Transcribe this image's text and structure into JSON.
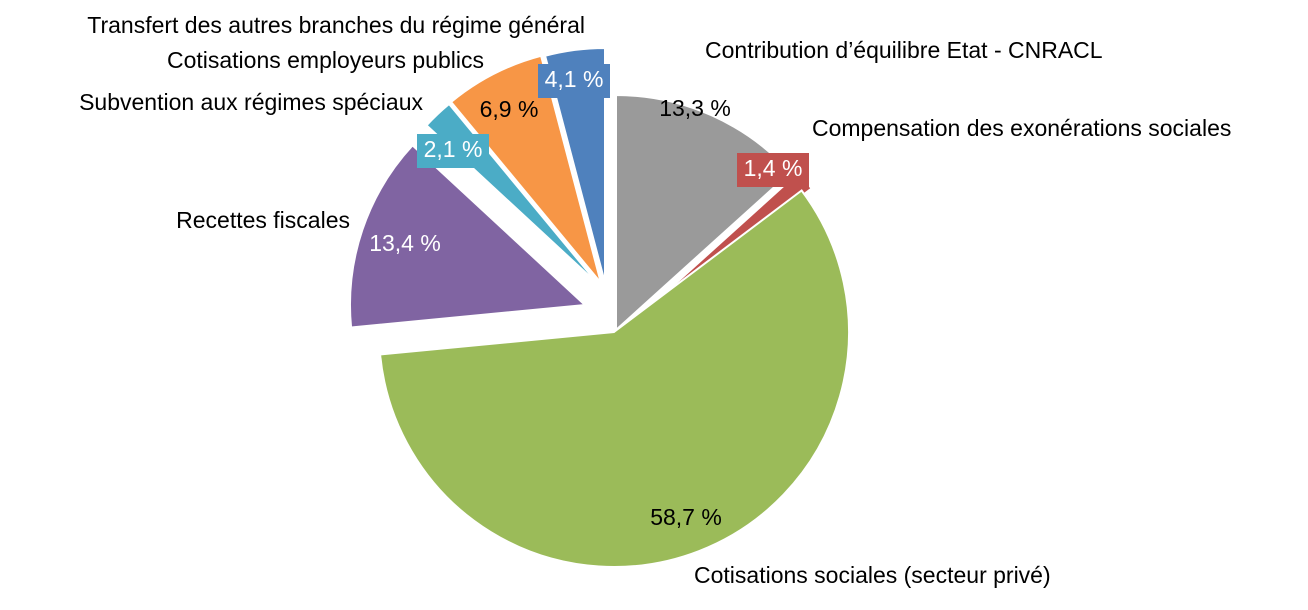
{
  "chart_data": {
    "type": "pie",
    "exploded": true,
    "start_angle_deg": 0,
    "direction": "clockwise",
    "slices": [
      {
        "category": "Contribution d’équilibre Etat - CNRACL",
        "value": 13.3,
        "label": "13,3 %",
        "color": "#9a9a9a",
        "label_box": false,
        "label_color": "#000000"
      },
      {
        "category": "Compensation des exonérations sociales",
        "value": 1.4,
        "label": "1,4 %",
        "color": "#c0504d",
        "label_box": true,
        "label_color": "#ffffff"
      },
      {
        "category": "Cotisations sociales (secteur privé)",
        "value": 58.7,
        "label": "58,7 %",
        "color": "#9bbb59",
        "label_box": false,
        "label_color": "#000000"
      },
      {
        "category": "Recettes fiscales",
        "value": 13.4,
        "label": "13,4 %",
        "color": "#8064a2",
        "label_box": false,
        "label_color": "#ffffff"
      },
      {
        "category": "Subvention aux régimes spéciaux",
        "value": 2.1,
        "label": "2,1 %",
        "color": "#4bacc6",
        "label_box": true,
        "label_color": "#ffffff"
      },
      {
        "category": "Cotisations employeurs publics",
        "value": 6.9,
        "label": "6,9 %",
        "color": "#f79646",
        "label_box": false,
        "label_color": "#000000"
      },
      {
        "category": "Transfert des autres branches du régime général",
        "value": 4.1,
        "label": "4,1 %",
        "color": "#4f81bd",
        "label_box": true,
        "label_color": "#ffffff"
      }
    ]
  }
}
